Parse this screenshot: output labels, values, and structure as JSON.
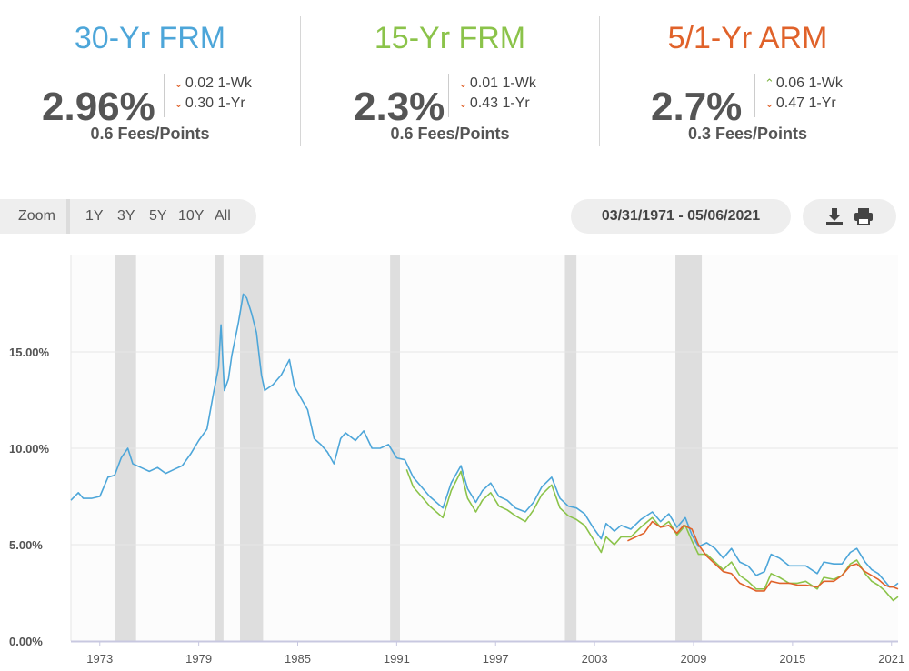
{
  "rates": [
    {
      "name": "30-Yr FRM",
      "color": "#4da6d9",
      "value": "2.96%",
      "week_dir": "down",
      "week_change": "0.02 1-Wk",
      "year_dir": "down",
      "year_change": "0.30 1-Yr",
      "fees": "0.6 Fees/Points"
    },
    {
      "name": "15-Yr FRM",
      "color": "#8bc34a",
      "value": "2.3%",
      "week_dir": "down",
      "week_change": "0.01 1-Wk",
      "year_dir": "down",
      "year_change": "0.43 1-Yr",
      "fees": "0.6 Fees/Points"
    },
    {
      "name": "5/1-Yr ARM",
      "color": "#e0622a",
      "value": "2.7%",
      "week_dir": "up",
      "week_change": "0.06 1-Wk",
      "year_dir": "down",
      "year_change": "0.47 1-Yr",
      "fees": "0.3 Fees/Points"
    }
  ],
  "toolbar": {
    "zoom_label": "Zoom",
    "zoom_options": [
      "1Y",
      "3Y",
      "5Y",
      "10Y",
      "All"
    ],
    "date_range": "03/31/1971 - 05/06/2021",
    "download_icon": "download-icon",
    "print_icon": "print-icon"
  },
  "chart_data": {
    "type": "line",
    "xlim": [
      1971.25,
      2021.4
    ],
    "ylim": [
      0,
      20
    ],
    "yticks": [
      {
        "value": 0,
        "label": "0.00%"
      },
      {
        "value": 5,
        "label": "5.00%"
      },
      {
        "value": 10,
        "label": "10.00%"
      },
      {
        "value": 15,
        "label": "15.00%"
      }
    ],
    "xticks": [
      {
        "value": 1973,
        "label": "1973"
      },
      {
        "value": 1979,
        "label": "1979"
      },
      {
        "value": 1985,
        "label": "1985"
      },
      {
        "value": 1991,
        "label": "1991"
      },
      {
        "value": 1997,
        "label": "1997"
      },
      {
        "value": 2003,
        "label": "2003"
      },
      {
        "value": 2009,
        "label": "2009"
      },
      {
        "value": 2015,
        "label": "2015"
      },
      {
        "value": 2021,
        "label": "2021"
      }
    ],
    "recessions": [
      [
        1973.9,
        1975.2
      ],
      [
        1980.0,
        1980.5
      ],
      [
        1981.5,
        1982.9
      ],
      [
        1990.6,
        1991.2
      ],
      [
        2001.2,
        2001.9
      ],
      [
        2007.9,
        2009.5
      ]
    ],
    "series": [
      {
        "name": "30-Yr FRM",
        "color": "#4da6d9",
        "x": [
          1971.25,
          1971.7,
          1972.0,
          1972.5,
          1973.0,
          1973.5,
          1973.9,
          1974.3,
          1974.7,
          1975.0,
          1975.5,
          1976.0,
          1976.5,
          1977.0,
          1977.5,
          1978.0,
          1978.5,
          1979.0,
          1979.5,
          1979.9,
          1980.2,
          1980.35,
          1980.55,
          1980.8,
          1981.0,
          1981.4,
          1981.7,
          1981.9,
          1982.2,
          1982.5,
          1982.8,
          1983.0,
          1983.5,
          1984.0,
          1984.5,
          1984.8,
          1985.2,
          1985.6,
          1986.0,
          1986.4,
          1986.8,
          1987.2,
          1987.6,
          1987.9,
          1988.5,
          1989.0,
          1989.5,
          1990.0,
          1990.5,
          1991.0,
          1991.5,
          1992.0,
          1992.5,
          1993.0,
          1993.8,
          1994.3,
          1994.9,
          1995.3,
          1995.8,
          1996.2,
          1996.7,
          1997.2,
          1997.7,
          1998.2,
          1998.8,
          1999.3,
          1999.8,
          2000.4,
          2000.9,
          2001.4,
          2001.9,
          2002.4,
          2002.9,
          2003.4,
          2003.7,
          2004.2,
          2004.6,
          2005.2,
          2005.8,
          2006.5,
          2007.0,
          2007.5,
          2008.0,
          2008.5,
          2008.9,
          2009.3,
          2009.8,
          2010.3,
          2010.8,
          2011.3,
          2011.8,
          2012.3,
          2012.8,
          2013.3,
          2013.7,
          2014.2,
          2014.8,
          2015.3,
          2015.8,
          2016.5,
          2016.9,
          2017.5,
          2018.0,
          2018.5,
          2018.9,
          2019.4,
          2019.8,
          2020.2,
          2020.6,
          2020.9,
          2021.1,
          2021.4
        ],
        "y": [
          7.3,
          7.7,
          7.4,
          7.4,
          7.5,
          8.5,
          8.6,
          9.5,
          10.0,
          9.2,
          9.0,
          8.8,
          9.0,
          8.7,
          8.9,
          9.1,
          9.7,
          10.4,
          11.0,
          12.9,
          14.2,
          16.4,
          13.0,
          13.6,
          14.8,
          16.5,
          18.0,
          17.8,
          17.0,
          16.0,
          13.8,
          13.0,
          13.3,
          13.8,
          14.6,
          13.2,
          12.6,
          12.0,
          10.5,
          10.2,
          9.8,
          9.2,
          10.5,
          10.8,
          10.4,
          10.9,
          10.0,
          10.0,
          10.2,
          9.5,
          9.4,
          8.5,
          8.0,
          7.5,
          6.9,
          8.2,
          9.1,
          7.9,
          7.2,
          7.8,
          8.2,
          7.5,
          7.3,
          6.9,
          6.7,
          7.2,
          8.0,
          8.5,
          7.4,
          7.0,
          6.9,
          6.6,
          5.9,
          5.3,
          6.1,
          5.7,
          6.0,
          5.8,
          6.3,
          6.7,
          6.2,
          6.6,
          5.9,
          6.4,
          5.5,
          4.9,
          5.1,
          4.8,
          4.3,
          4.8,
          4.1,
          3.9,
          3.4,
          3.6,
          4.5,
          4.3,
          3.9,
          3.9,
          3.9,
          3.5,
          4.1,
          4.0,
          4.0,
          4.6,
          4.8,
          4.1,
          3.7,
          3.5,
          3.1,
          2.8,
          2.8,
          3.0
        ]
      },
      {
        "name": "15-Yr FRM",
        "color": "#8bc34a",
        "x": [
          1991.6,
          1992.0,
          1992.5,
          1993.0,
          1993.8,
          1994.3,
          1994.9,
          1995.3,
          1995.8,
          1996.2,
          1996.7,
          1997.2,
          1997.7,
          1998.2,
          1998.8,
          1999.3,
          1999.8,
          2000.4,
          2000.9,
          2001.4,
          2001.9,
          2002.4,
          2002.9,
          2003.4,
          2003.7,
          2004.2,
          2004.6,
          2005.2,
          2005.8,
          2006.5,
          2007.0,
          2007.5,
          2008.0,
          2008.5,
          2008.9,
          2009.3,
          2009.8,
          2010.3,
          2010.8,
          2011.3,
          2011.8,
          2012.3,
          2012.8,
          2013.3,
          2013.7,
          2014.2,
          2014.8,
          2015.3,
          2015.8,
          2016.5,
          2016.9,
          2017.5,
          2018.0,
          2018.5,
          2018.9,
          2019.4,
          2019.8,
          2020.2,
          2020.6,
          2020.9,
          2021.1,
          2021.4
        ],
        "y": [
          8.9,
          8.0,
          7.5,
          7.0,
          6.4,
          7.8,
          8.8,
          7.4,
          6.7,
          7.3,
          7.7,
          7.0,
          6.8,
          6.5,
          6.2,
          6.8,
          7.6,
          8.1,
          6.9,
          6.5,
          6.3,
          6.0,
          5.3,
          4.6,
          5.4,
          5.0,
          5.4,
          5.4,
          5.9,
          6.4,
          5.9,
          6.2,
          5.5,
          6.0,
          5.2,
          4.5,
          4.5,
          4.1,
          3.7,
          4.1,
          3.4,
          3.1,
          2.7,
          2.7,
          3.5,
          3.3,
          3.0,
          3.0,
          3.1,
          2.7,
          3.3,
          3.2,
          3.4,
          4.0,
          4.2,
          3.5,
          3.1,
          2.9,
          2.6,
          2.3,
          2.1,
          2.3
        ]
      },
      {
        "name": "5/1-Yr ARM",
        "color": "#e0622a",
        "x": [
          2005.0,
          2005.5,
          2006.0,
          2006.5,
          2007.0,
          2007.5,
          2008.0,
          2008.4,
          2008.9,
          2009.3,
          2009.8,
          2010.3,
          2010.8,
          2011.3,
          2011.8,
          2012.3,
          2012.8,
          2013.3,
          2013.7,
          2014.2,
          2014.8,
          2015.3,
          2015.8,
          2016.5,
          2016.9,
          2017.5,
          2018.0,
          2018.5,
          2018.9,
          2019.4,
          2019.8,
          2020.2,
          2020.6,
          2020.9,
          2021.1,
          2021.4
        ],
        "y": [
          5.2,
          5.4,
          5.6,
          6.2,
          5.9,
          6.0,
          5.6,
          6.0,
          5.8,
          5.0,
          4.4,
          4.0,
          3.6,
          3.5,
          3.0,
          2.8,
          2.6,
          2.6,
          3.1,
          3.0,
          3.0,
          2.9,
          2.9,
          2.8,
          3.1,
          3.1,
          3.4,
          3.9,
          4.0,
          3.6,
          3.4,
          3.2,
          2.9,
          2.8,
          2.8,
          2.7
        ]
      }
    ]
  }
}
